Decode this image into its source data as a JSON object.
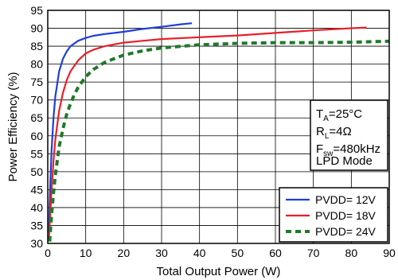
{
  "chart_data": {
    "type": "line",
    "xlabel": "Total Output Power (W)",
    "ylabel": "Power Efficiency (%)",
    "xlim": [
      0,
      90
    ],
    "ylim": [
      30,
      95
    ],
    "xticks": [
      0,
      10,
      20,
      30,
      40,
      50,
      60,
      70,
      80,
      90
    ],
    "yticks": [
      30,
      35,
      40,
      45,
      50,
      55,
      60,
      65,
      70,
      75,
      80,
      85,
      90,
      95
    ],
    "grid": true,
    "legend_position": "bottom-right",
    "annotations": {
      "ta": {
        "main": "T",
        "sub": "A",
        "rest": "=25°C"
      },
      "rl": {
        "main": "R",
        "sub": "L",
        "rest": "=4Ω"
      },
      "fsw": {
        "main": "F",
        "sub": "sw",
        "rest": "=480kHz"
      },
      "mode": "LPD Mode"
    },
    "series": [
      {
        "name": "PVDD= 12V",
        "color": "#1f3fd8",
        "style": "solid",
        "x": [
          0.3,
          0.6,
          1,
          1.5,
          2,
          3,
          4,
          5,
          6,
          8,
          10,
          12,
          15,
          20,
          25,
          30,
          35,
          38
        ],
        "y": [
          33,
          45,
          56,
          65,
          71,
          78,
          81.5,
          83.5,
          85,
          86.5,
          87.3,
          87.9,
          88.4,
          89,
          89.8,
          90.4,
          91.1,
          91.4
        ]
      },
      {
        "name": "PVDD= 18V",
        "color": "#e8202a",
        "style": "solid",
        "x": [
          0.3,
          0.6,
          1,
          1.5,
          2,
          3,
          4,
          5,
          6,
          8,
          10,
          12,
          15,
          20,
          25,
          30,
          40,
          50,
          60,
          70,
          80,
          84
        ],
        "y": [
          31,
          37,
          45,
          53,
          59,
          67,
          72,
          75.5,
          78,
          81,
          83,
          84,
          85,
          86,
          86.5,
          87,
          87.5,
          88,
          88.7,
          89.4,
          90,
          90.2
        ]
      },
      {
        "name": "PVDD= 24V",
        "color": "#1f7a2a",
        "style": "dashed",
        "x": [
          0.5,
          1,
          1.5,
          2,
          3,
          4,
          5,
          6,
          7,
          8,
          10,
          12,
          15,
          20,
          25,
          30,
          40,
          50,
          60,
          70,
          80,
          90
        ],
        "y": [
          30.5,
          38,
          44,
          49,
          57,
          62,
          66,
          69,
          71.5,
          73.5,
          76.5,
          78.5,
          80.5,
          82.5,
          83.7,
          84.5,
          85.4,
          85.8,
          86,
          86,
          86.1,
          86.4
        ]
      }
    ]
  }
}
